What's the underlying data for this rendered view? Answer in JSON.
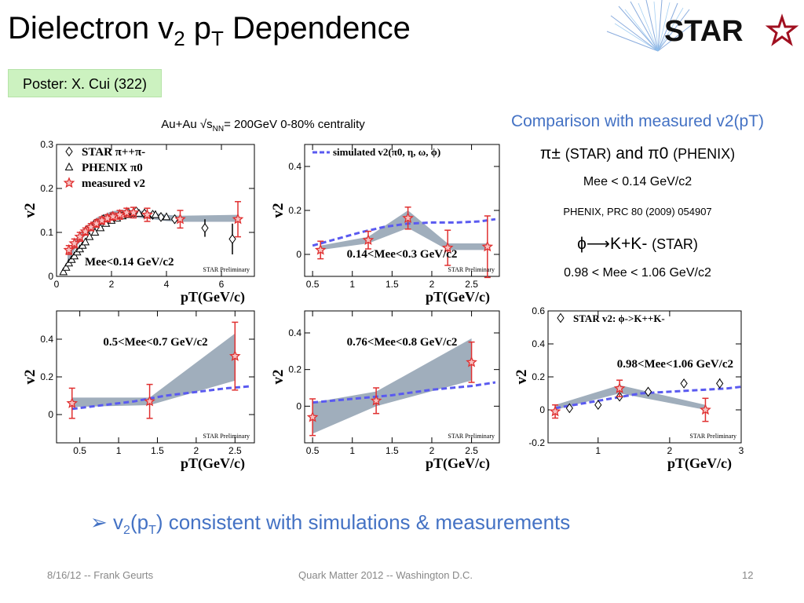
{
  "header": {
    "title_main": "Dielectron v",
    "title_sub1": "2",
    "title_p": " p",
    "title_sub2": "T",
    "title_rest": " Dependence",
    "logo_text": "STAR"
  },
  "poster_label": "Poster: X. Cui (322)",
  "collision": {
    "a": "Au+Au √s",
    "sub": "NN",
    "b": "= 200GeV  0-80% centrality"
  },
  "right_info": {
    "heading": "Comparison with measured v2(pT)",
    "pi_line_a": "π± ",
    "pi_line_b": "(STAR)",
    "pi_line_c": " and π0 ",
    "pi_line_d": "(PHENIX)",
    "mee_line1": "Mee < 0.14 GeV/c2",
    "reference": "PHENIX, PRC 80 (2009) 054907",
    "phi_line_a": "ϕ⟶K+K- ",
    "phi_line_b": "(STAR)",
    "mee_line2": "0.98 < Mee < 1.06 GeV/c2"
  },
  "bullet": {
    "arrow": "➢",
    "a": " v",
    "sub1": "2",
    "b": "(p",
    "sub2": "T",
    "c": ") consistent with simulations & measurements"
  },
  "footer": {
    "date": "8/16/12 -- Frank Geurts",
    "conference": "Quark Matter 2012 -- Washington D.C.",
    "page": "12"
  },
  "colors": {
    "accent_blue": "#4472c4",
    "simulation_dash": "#5a5af0",
    "systematic_band": "#8fa0b0",
    "measured_star": "#e03030",
    "poster_bg": "#ccf2c0",
    "logo_red": "#a01020"
  },
  "chart_data": [
    {
      "id": "p1",
      "type": "scatter",
      "title": "Mee<0.14 GeV/c2",
      "watermark": "STAR Preliminary",
      "xlabel": "pT(GeV/c)",
      "ylabel": "v2",
      "xlim": [
        0,
        7.2
      ],
      "ylim": [
        0,
        0.3
      ],
      "xticks": [
        0,
        2,
        4,
        6
      ],
      "yticks": [
        0,
        0.1,
        0.2,
        0.3
      ],
      "legend": {
        "position": "top-left",
        "items": [
          {
            "marker": "diamond",
            "label": "STAR π++π-"
          },
          {
            "marker": "triangle",
            "label": "PHENIX π0"
          },
          {
            "marker": "star",
            "label": "measured v2"
          }
        ]
      },
      "band": [
        [
          0.4,
          0.03,
          0.05
        ],
        [
          0.7,
          0.065,
          0.085
        ],
        [
          1.0,
          0.09,
          0.11
        ],
        [
          1.5,
          0.115,
          0.135
        ],
        [
          2.0,
          0.13,
          0.148
        ],
        [
          2.5,
          0.136,
          0.152
        ],
        [
          3.0,
          0.133,
          0.15
        ],
        [
          3.5,
          0.13,
          0.145
        ],
        [
          4.0,
          0.126,
          0.14
        ],
        [
          4.5,
          0.124,
          0.138
        ],
        [
          6.6,
          0.124,
          0.14
        ]
      ],
      "series": [
        {
          "name": "STAR π++π-",
          "marker": "diamond",
          "x": [
            1.1,
            1.4,
            1.7,
            2.0,
            2.3,
            2.6,
            2.9,
            3.2,
            3.5,
            3.8,
            4.3,
            5.4,
            6.4
          ],
          "y": [
            0.105,
            0.12,
            0.13,
            0.135,
            0.14,
            0.145,
            0.148,
            0.143,
            0.14,
            0.135,
            0.13,
            0.11,
            0.085
          ],
          "err": [
            0.003,
            0.003,
            0.003,
            0.003,
            0.003,
            0.004,
            0.004,
            0.005,
            0.006,
            0.008,
            0.01,
            0.02,
            0.035
          ]
        },
        {
          "name": "PHENIX π0",
          "marker": "triangle",
          "x": [
            0.25,
            0.35,
            0.45,
            0.55,
            0.65,
            0.75,
            0.85,
            0.95,
            1.05,
            1.2,
            1.4,
            1.6,
            1.8,
            2.0,
            2.2,
            2.4,
            2.6,
            2.8,
            3.0,
            3.3,
            3.6,
            4.0
          ],
          "y": [
            0.01,
            0.02,
            0.03,
            0.038,
            0.046,
            0.055,
            0.062,
            0.07,
            0.078,
            0.09,
            0.1,
            0.11,
            0.12,
            0.127,
            0.132,
            0.137,
            0.14,
            0.143,
            0.143,
            0.14,
            0.14,
            0.135
          ]
        },
        {
          "name": "measured v2",
          "marker": "star",
          "x": [
            0.45,
            0.65,
            0.85,
            1.05,
            1.25,
            1.45,
            1.65,
            1.85,
            2.05,
            2.3,
            2.55,
            2.8,
            3.3,
            4.5,
            6.6
          ],
          "y": [
            0.06,
            0.075,
            0.09,
            0.102,
            0.112,
            0.12,
            0.127,
            0.132,
            0.136,
            0.14,
            0.145,
            0.145,
            0.14,
            0.13,
            0.13
          ],
          "err": [
            0.01,
            0.01,
            0.01,
            0.008,
            0.008,
            0.008,
            0.008,
            0.008,
            0.008,
            0.01,
            0.01,
            0.012,
            0.015,
            0.02,
            0.04
          ]
        }
      ]
    },
    {
      "id": "p2",
      "type": "line",
      "title": "0.14<Mee<0.3 GeV/c2",
      "watermark": "STAR Preliminary",
      "xlabel": "pT(GeV/c)",
      "ylabel": "v2",
      "xlim": [
        0.4,
        2.85
      ],
      "ylim": [
        -0.1,
        0.5
      ],
      "xticks": [
        0.5,
        1,
        1.5,
        2,
        2.5
      ],
      "yticks": [
        0,
        0.2,
        0.4
      ],
      "legend": {
        "position": "top-left",
        "items": [
          {
            "marker": "dash",
            "label": "simulated v2(π0, η, ω, ϕ)"
          }
        ]
      },
      "sim": {
        "x": [
          0.5,
          0.8,
          1.1,
          1.4,
          1.7,
          2.0,
          2.3,
          2.6,
          2.8
        ],
        "y": [
          0.04,
          0.07,
          0.1,
          0.125,
          0.14,
          0.145,
          0.145,
          0.15,
          0.16
        ]
      },
      "band": [
        [
          0.6,
          0.02,
          0.04
        ],
        [
          1.2,
          0.05,
          0.08
        ],
        [
          1.7,
          0.12,
          0.2
        ],
        [
          2.2,
          0.02,
          0.05
        ],
        [
          2.7,
          0.02,
          0.05
        ]
      ],
      "series": [
        {
          "name": "measured v2",
          "marker": "star",
          "x": [
            0.6,
            1.2,
            1.7,
            2.2,
            2.7
          ],
          "y": [
            0.02,
            0.065,
            0.165,
            0.03,
            0.035
          ],
          "err": [
            0.04,
            0.04,
            0.05,
            0.08,
            0.14
          ]
        }
      ]
    },
    {
      "id": "p3",
      "type": "line",
      "title": "0.5<Mee<0.7 GeV/c2",
      "watermark": "STAR Preliminary",
      "xlabel": "pT(GeV/c)",
      "ylabel": "v2",
      "xlim": [
        0.2,
        2.75
      ],
      "ylim": [
        -0.15,
        0.55
      ],
      "xticks": [
        0.5,
        1,
        1.5,
        2,
        2.5
      ],
      "yticks": [
        0,
        0.2,
        0.4
      ],
      "sim": {
        "x": [
          0.4,
          0.8,
          1.2,
          1.6,
          2.0,
          2.4,
          2.7
        ],
        "y": [
          0.03,
          0.05,
          0.07,
          0.1,
          0.12,
          0.14,
          0.15
        ]
      },
      "band": [
        [
          0.4,
          0.04,
          0.09
        ],
        [
          1.4,
          0.05,
          0.09
        ],
        [
          2.5,
          0.18,
          0.43
        ]
      ],
      "series": [
        {
          "name": "measured v2",
          "marker": "star",
          "x": [
            0.4,
            1.4,
            2.5
          ],
          "y": [
            0.06,
            0.07,
            0.31
          ],
          "err": [
            0.08,
            0.09,
            0.18
          ]
        }
      ]
    },
    {
      "id": "p4",
      "type": "line",
      "title": "0.76<Mee<0.8 GeV/c2",
      "watermark": "STAR Preliminary",
      "xlabel": "pT(GeV/c)",
      "ylabel": "v2",
      "xlim": [
        0.4,
        2.85
      ],
      "ylim": [
        -0.2,
        0.52
      ],
      "xticks": [
        0.5,
        1,
        1.5,
        2,
        2.5
      ],
      "yticks": [
        0,
        0.2,
        0.4
      ],
      "sim": {
        "x": [
          0.5,
          1.0,
          1.5,
          2.0,
          2.5,
          2.8
        ],
        "y": [
          0.02,
          0.04,
          0.06,
          0.09,
          0.11,
          0.13
        ]
      },
      "band": [
        [
          0.5,
          -0.15,
          0.02
        ],
        [
          1.3,
          0.0,
          0.08
        ],
        [
          2.5,
          0.14,
          0.37
        ]
      ],
      "series": [
        {
          "name": "measured v2",
          "marker": "star",
          "x": [
            0.5,
            1.3,
            2.5
          ],
          "y": [
            -0.06,
            0.03,
            0.24
          ],
          "err": [
            0.1,
            0.07,
            0.11
          ]
        }
      ]
    },
    {
      "id": "p5",
      "type": "scatter",
      "title": "0.98<Mee<1.06 GeV/c2",
      "watermark": "STAR Preliminary",
      "xlabel": "pT(GeV/c)",
      "ylabel": "v2",
      "xlim": [
        0.3,
        3.0
      ],
      "ylim": [
        -0.2,
        0.6
      ],
      "xticks": [
        1,
        2,
        3
      ],
      "yticks": [
        -0.2,
        0,
        0.2,
        0.4,
        0.6
      ],
      "legend": {
        "position": "top-left",
        "items": [
          {
            "marker": "diamond",
            "label": "STAR v2: ϕ->K++K-"
          }
        ]
      },
      "sim": {
        "x": [
          0.4,
          0.8,
          1.2,
          1.6,
          2.0,
          2.4,
          2.8,
          3.0
        ],
        "y": [
          0.01,
          0.04,
          0.07,
          0.1,
          0.11,
          0.12,
          0.13,
          0.14
        ]
      },
      "band": [
        [
          0.4,
          0.0,
          0.03
        ],
        [
          1.3,
          0.1,
          0.15
        ],
        [
          2.5,
          0.0,
          0.03
        ]
      ],
      "series": [
        {
          "name": "STAR v2: ϕ->K++K-",
          "marker": "diamond",
          "x": [
            0.6,
            1.0,
            1.3,
            1.7,
            2.2,
            2.7
          ],
          "y": [
            0.01,
            0.03,
            0.08,
            0.11,
            0.16,
            0.16
          ],
          "err": [
            0.005,
            0.005,
            0.01,
            0.01,
            0.02,
            0.03
          ]
        },
        {
          "name": "measured v2",
          "marker": "star",
          "x": [
            0.4,
            1.3,
            2.5
          ],
          "y": [
            -0.01,
            0.13,
            0.0
          ],
          "err": [
            0.04,
            0.05,
            0.07
          ]
        }
      ]
    }
  ]
}
